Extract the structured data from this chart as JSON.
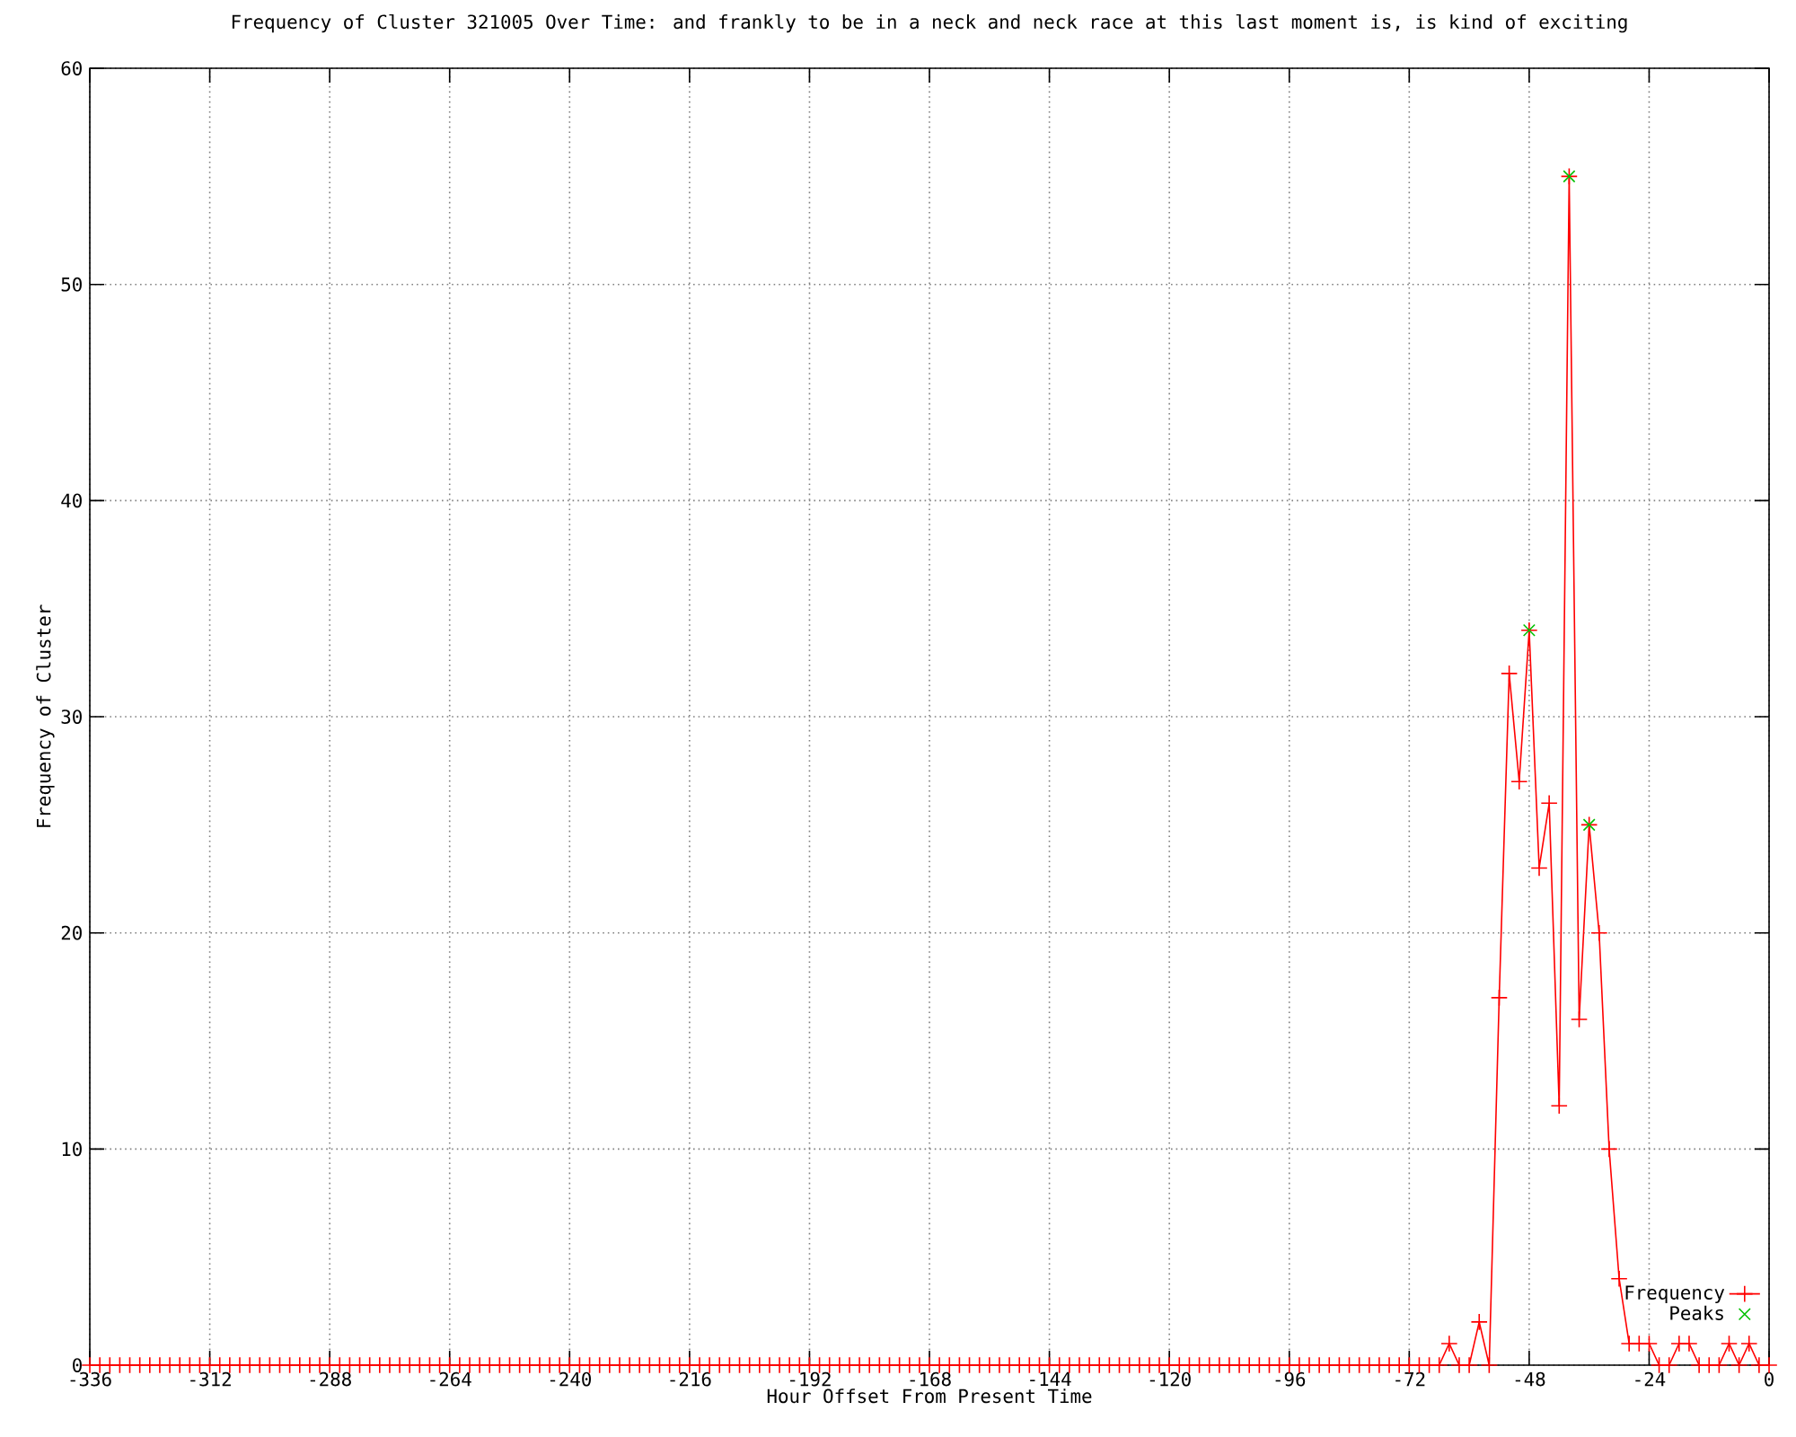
{
  "chart_data": {
    "type": "line",
    "title": "Frequency of Cluster 321005 Over Time: and frankly to be in a neck and neck race at this last moment is, is kind of exciting",
    "xlabel": "Hour Offset From Present Time",
    "ylabel": "Frequency of Cluster",
    "xlim": [
      -336,
      0
    ],
    "ylim": [
      0,
      60
    ],
    "xticks": [
      -336,
      -312,
      -288,
      -264,
      -240,
      -216,
      -192,
      -168,
      -144,
      -120,
      -96,
      -72,
      -48,
      -24,
      0
    ],
    "yticks": [
      0,
      10,
      20,
      30,
      40,
      50,
      60
    ],
    "grid": true,
    "legend": "bottom right",
    "marker": "cross",
    "series": [
      {
        "name": "Frequency",
        "color": "#ff0000",
        "x": [
          -336,
          -334,
          -332,
          -330,
          -328,
          -326,
          -324,
          -322,
          -320,
          -318,
          -316,
          -314,
          -312,
          -310,
          -308,
          -306,
          -304,
          -302,
          -300,
          -298,
          -296,
          -294,
          -292,
          -290,
          -288,
          -286,
          -284,
          -282,
          -280,
          -278,
          -276,
          -274,
          -272,
          -270,
          -268,
          -266,
          -264,
          -262,
          -260,
          -258,
          -256,
          -254,
          -252,
          -250,
          -248,
          -246,
          -244,
          -242,
          -240,
          -238,
          -236,
          -234,
          -232,
          -230,
          -228,
          -226,
          -224,
          -222,
          -220,
          -218,
          -216,
          -214,
          -212,
          -210,
          -208,
          -206,
          -204,
          -202,
          -200,
          -198,
          -196,
          -194,
          -192,
          -190,
          -188,
          -186,
          -184,
          -182,
          -180,
          -178,
          -176,
          -174,
          -172,
          -170,
          -168,
          -166,
          -164,
          -162,
          -160,
          -158,
          -156,
          -154,
          -152,
          -150,
          -148,
          -146,
          -144,
          -142,
          -140,
          -138,
          -136,
          -134,
          -132,
          -130,
          -128,
          -126,
          -124,
          -122,
          -120,
          -118,
          -116,
          -114,
          -112,
          -110,
          -108,
          -106,
          -104,
          -102,
          -100,
          -98,
          -96,
          -94,
          -92,
          -90,
          -88,
          -86,
          -84,
          -82,
          -80,
          -78,
          -76,
          -74,
          -72,
          -70,
          -68,
          -66,
          -64,
          -62,
          -60,
          -58,
          -56,
          -54,
          -52,
          -50,
          -48,
          -46,
          -44,
          -42,
          -40,
          -38,
          -36,
          -34,
          -32,
          -30,
          -28,
          -26,
          -24,
          -22,
          -20,
          -18,
          -16,
          -14,
          -12,
          -10,
          -8,
          -6,
          -4,
          -2,
          0
        ],
        "values": [
          0,
          0,
          0,
          0,
          0,
          0,
          0,
          0,
          0,
          0,
          0,
          0,
          0,
          0,
          0,
          0,
          0,
          0,
          0,
          0,
          0,
          0,
          0,
          0,
          0,
          0,
          0,
          0,
          0,
          0,
          0,
          0,
          0,
          0,
          0,
          0,
          0,
          0,
          0,
          0,
          0,
          0,
          0,
          0,
          0,
          0,
          0,
          0,
          0,
          0,
          0,
          0,
          0,
          0,
          0,
          0,
          0,
          0,
          0,
          0,
          0,
          0,
          0,
          0,
          0,
          0,
          0,
          0,
          0,
          0,
          0,
          0,
          0,
          0,
          0,
          0,
          0,
          0,
          0,
          0,
          0,
          0,
          0,
          0,
          0,
          0,
          0,
          0,
          0,
          0,
          0,
          0,
          0,
          0,
          0,
          0,
          0,
          0,
          0,
          0,
          0,
          0,
          0,
          0,
          0,
          0,
          0,
          0,
          0,
          0,
          0,
          0,
          0,
          0,
          0,
          0,
          0,
          0,
          0,
          0,
          0,
          0,
          0,
          0,
          0,
          0,
          0,
          0,
          0,
          0,
          0,
          0,
          0,
          0,
          0,
          0,
          1,
          0,
          0,
          2,
          0,
          17,
          32,
          27,
          34,
          23,
          26,
          12,
          55,
          16,
          25,
          20,
          10,
          4,
          1,
          1,
          1,
          0,
          0,
          1,
          1,
          0,
          0,
          0,
          1,
          0,
          1,
          0,
          0
        ]
      },
      {
        "name": "Peaks",
        "type": "scatter",
        "color": "#00c000",
        "x": [
          -48,
          -40,
          -36
        ],
        "values": [
          34,
          55,
          25
        ]
      }
    ]
  }
}
